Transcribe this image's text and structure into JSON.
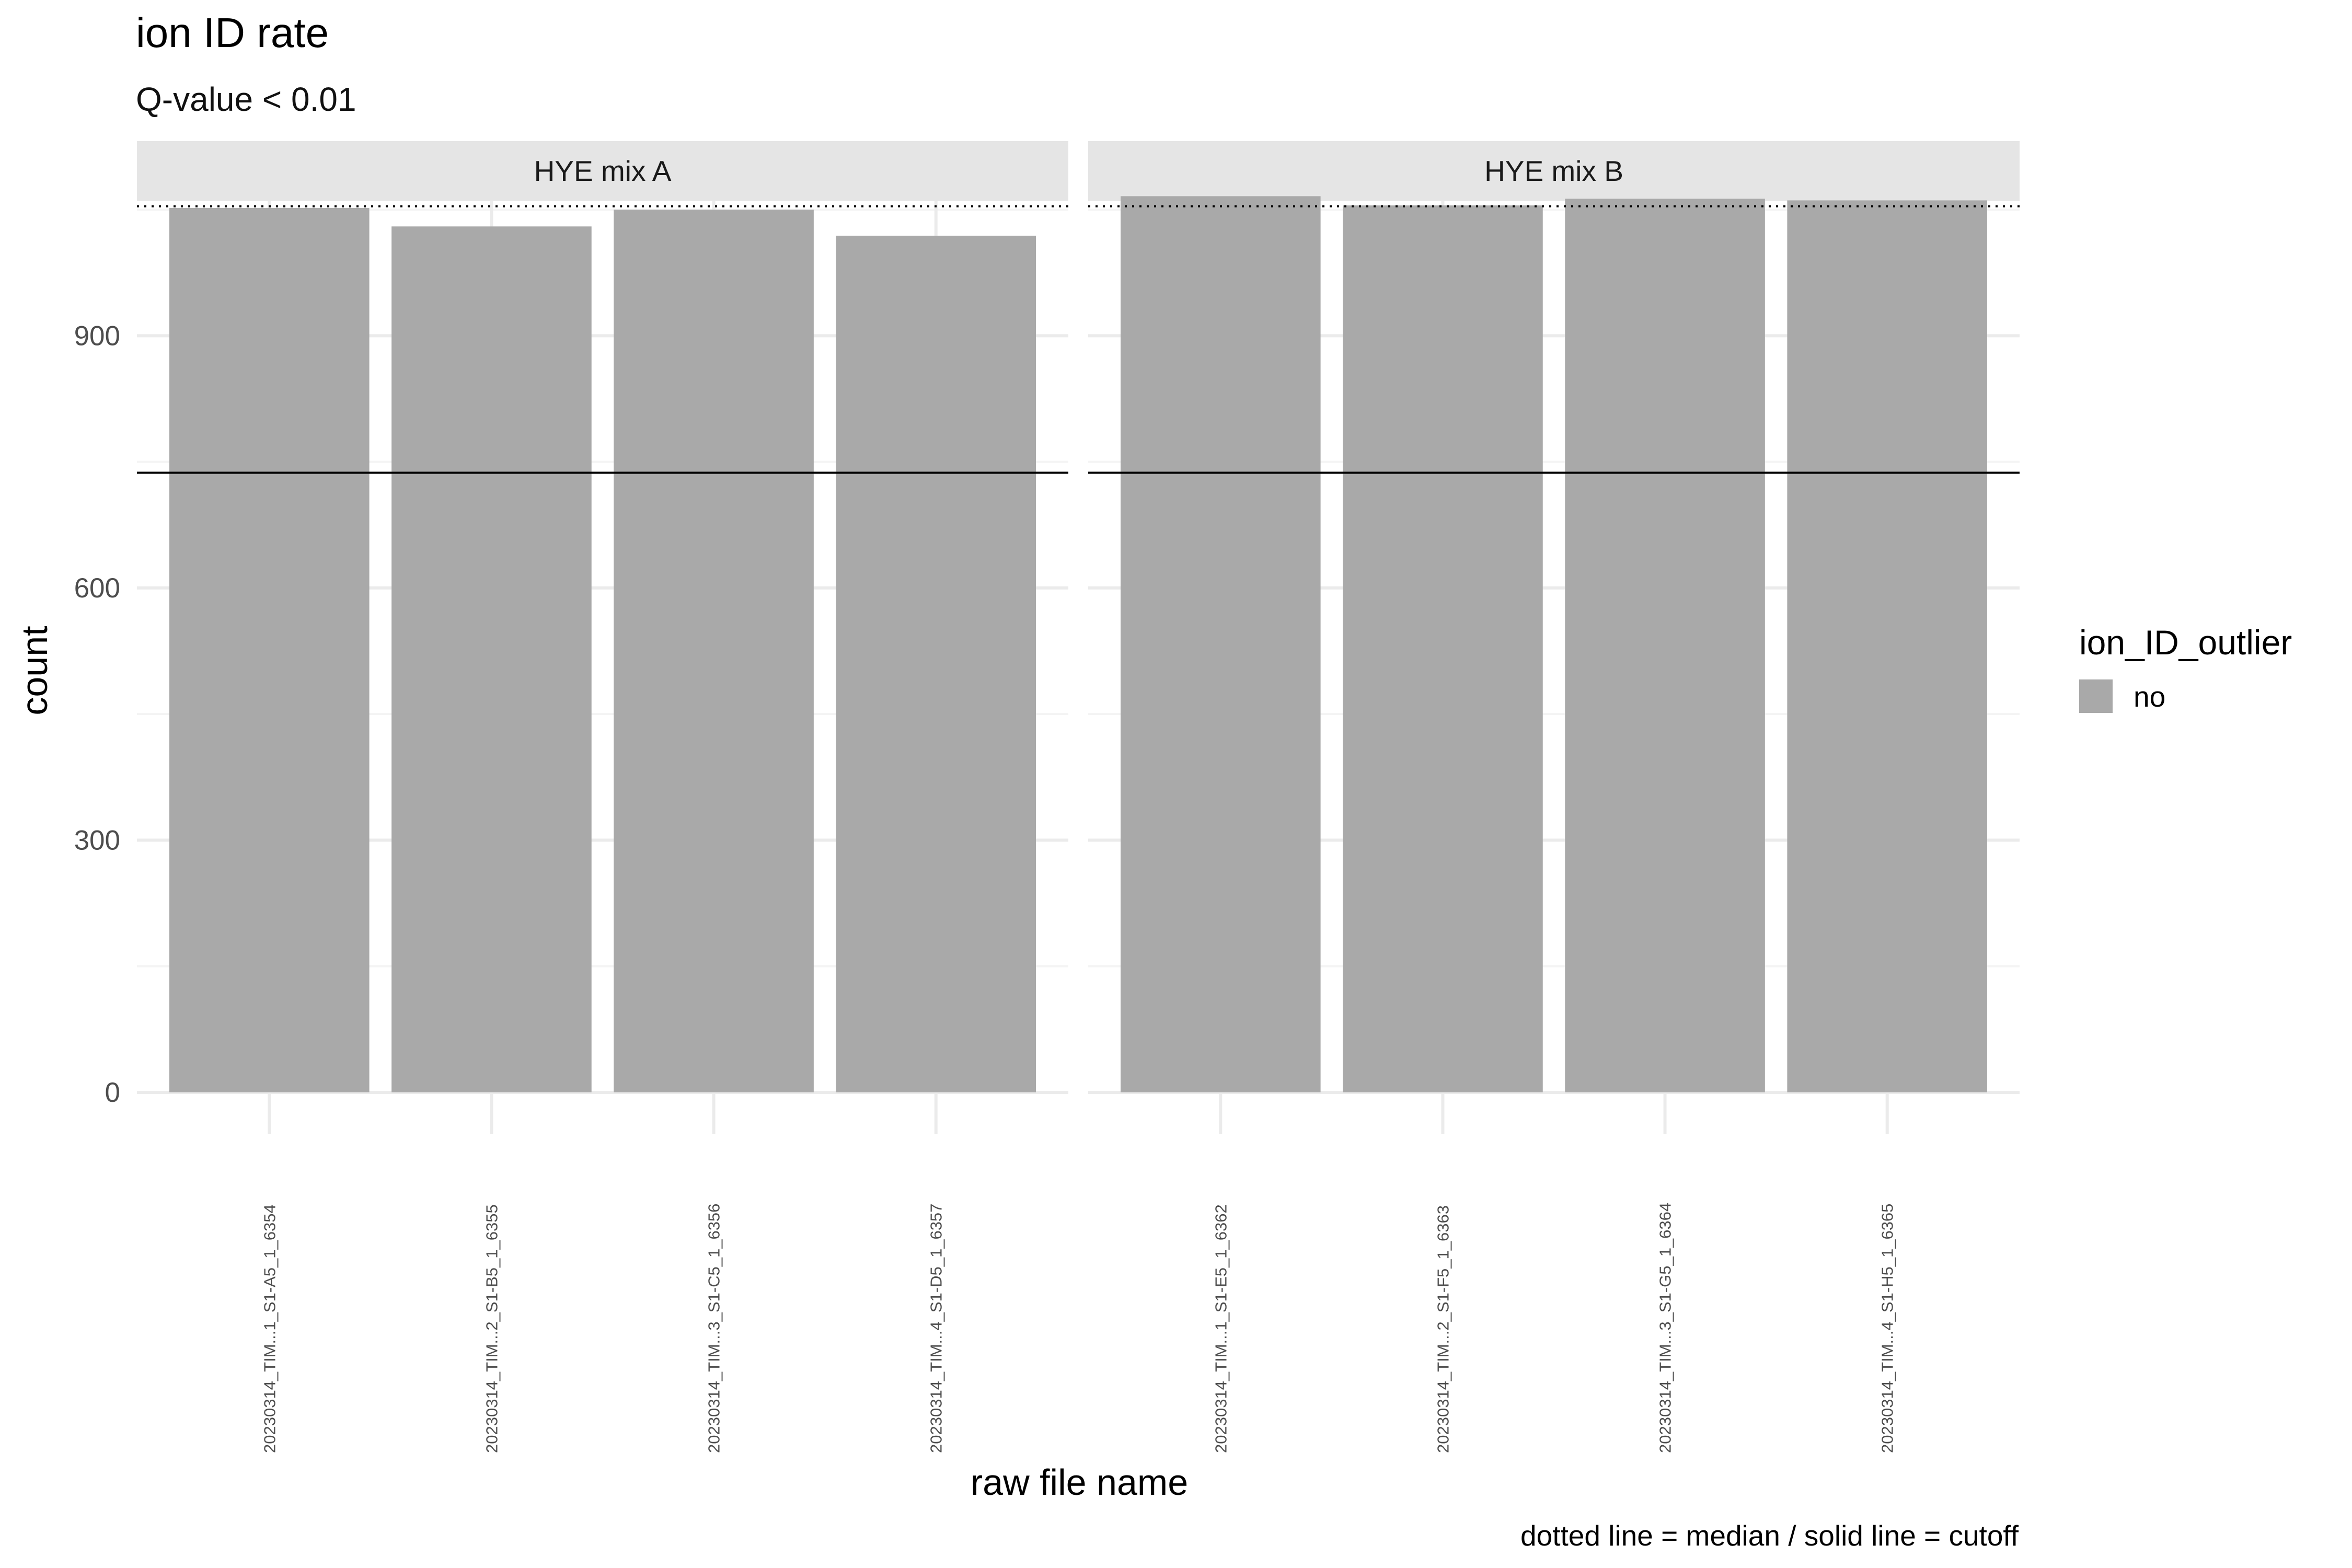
{
  "chart_data": {
    "type": "bar",
    "title": "ion ID rate",
    "subtitle": "Q-value < 0.01",
    "xlabel": "raw file name",
    "ylabel": "count",
    "caption": "dotted line = median / solid line = cutoff",
    "ylim": [
      0,
      1060
    ],
    "y_ticks": [
      0,
      300,
      600,
      900
    ],
    "median_line": 1054,
    "cutoff_line": 737,
    "grid": true,
    "legend": {
      "title": "ion_ID_outlier",
      "position": "right",
      "entries": [
        {
          "label": "no",
          "color": "#a9a9a9"
        }
      ]
    },
    "facets": [
      {
        "label": "HYE mix A",
        "categories": [
          "20230314_TIM...1_S1-A5_1_6354",
          "20230314_TIM...2_S1-B5_1_6355",
          "20230314_TIM...3_S1-C5_1_6356",
          "20230314_TIM...4_S1-D5_1_6357"
        ],
        "values": [
          1052,
          1030,
          1050,
          1019
        ],
        "outlier": [
          "no",
          "no",
          "no",
          "no"
        ]
      },
      {
        "label": "HYE mix B",
        "categories": [
          "20230314_TIM...1_S1-E5_1_6362",
          "20230314_TIM...2_S1-F5_1_6363",
          "20230314_TIM...3_S1-G5_1_6364",
          "20230314_TIM...4_S1-H5_1_6365"
        ],
        "values": [
          1066,
          1055,
          1063,
          1061
        ],
        "outlier": [
          "no",
          "no",
          "no",
          "no"
        ]
      }
    ]
  },
  "colors": {
    "bar": "#a9a9a9",
    "strip": "#e5e5e5",
    "grid_major": "#ebebeb",
    "grid_minor": "#f4f4f4"
  }
}
